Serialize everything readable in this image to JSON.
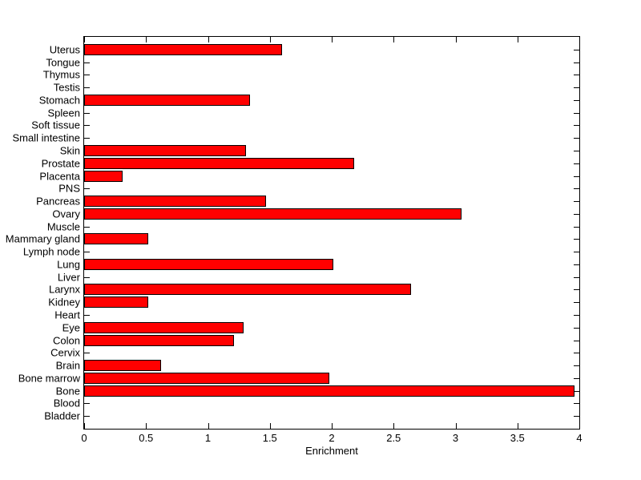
{
  "figure": {
    "background_color": "#ffffff",
    "text_color": "#000000"
  },
  "chart_data": {
    "type": "bar",
    "orientation": "horizontal",
    "title": "",
    "xlabel": "Enrichment",
    "ylabel": "",
    "xlim": [
      0,
      4
    ],
    "xticks": [
      0,
      0.5,
      1,
      1.5,
      2,
      2.5,
      3,
      3.5,
      4
    ],
    "xtick_labels": [
      "0",
      "0.5",
      "1",
      "1.5",
      "2",
      "2.5",
      "3",
      "3.5",
      "4"
    ],
    "grid": false,
    "legend": "none",
    "bar_color": "#ff0000",
    "bar_edge_color": "#000000",
    "categories": [
      "Uterus",
      "Tongue",
      "Thymus",
      "Testis",
      "Stomach",
      "Spleen",
      "Soft tissue",
      "Small intestine",
      "Skin",
      "Prostate",
      "Placenta",
      "PNS",
      "Pancreas",
      "Ovary",
      "Muscle",
      "Mammary gland",
      "Lymph node",
      "Lung",
      "Liver",
      "Larynx",
      "Kidney",
      "Heart",
      "Eye",
      "Colon",
      "Cervix",
      "Brain",
      "Bone marrow",
      "Bone",
      "Blood",
      "Bladder"
    ],
    "values": [
      1.6,
      0,
      0,
      0,
      1.34,
      0,
      0,
      0,
      1.31,
      2.18,
      0.31,
      0,
      1.47,
      3.05,
      0,
      0.52,
      0,
      2.01,
      0,
      2.64,
      0.52,
      0,
      1.29,
      1.21,
      0,
      0.62,
      1.98,
      3.96,
      0,
      0
    ]
  }
}
